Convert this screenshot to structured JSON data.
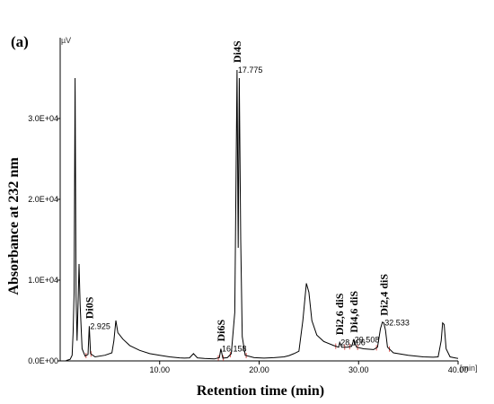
{
  "chart_data": {
    "type": "line",
    "panel_label": "(a)",
    "y_unit": "µV",
    "ylabel": "Absorbance at 232 nm",
    "xlabel": "Retention time (min)",
    "x_unit": "[min]",
    "xlim": [
      0,
      40
    ],
    "ylim": [
      0,
      40000
    ],
    "x_ticks": [
      {
        "value": 10,
        "label": "10.00"
      },
      {
        "value": 20,
        "label": "20.00"
      },
      {
        "value": 30,
        "label": "30.00"
      },
      {
        "value": 40,
        "label": "40.00"
      }
    ],
    "y_ticks": [
      {
        "value": 0,
        "label": "0.0E+00"
      },
      {
        "value": 10000,
        "label": "1.0E+04"
      },
      {
        "value": 20000,
        "label": "2.0E+04"
      },
      {
        "value": 30000,
        "label": "3.0E+04"
      }
    ],
    "series": [
      {
        "color": "#000000",
        "points": [
          [
            0.6,
            50
          ],
          [
            1.0,
            200
          ],
          [
            1.2,
            700
          ],
          [
            1.3,
            3500
          ],
          [
            1.4,
            8500
          ],
          [
            1.5,
            35000
          ],
          [
            1.6,
            8000
          ],
          [
            1.7,
            2500
          ],
          [
            1.8,
            7000
          ],
          [
            1.9,
            12000
          ],
          [
            2.0,
            7000
          ],
          [
            2.2,
            1500
          ],
          [
            2.5,
            600
          ],
          [
            2.8,
            800
          ],
          [
            2.925,
            4300
          ],
          [
            3.05,
            900
          ],
          [
            3.5,
            500
          ],
          [
            4.5,
            700
          ],
          [
            5.2,
            1000
          ],
          [
            5.4,
            2500
          ],
          [
            5.6,
            5000
          ],
          [
            5.8,
            3500
          ],
          [
            6.3,
            2700
          ],
          [
            7.0,
            1900
          ],
          [
            8.0,
            1300
          ],
          [
            9.0,
            900
          ],
          [
            10.0,
            700
          ],
          [
            11.0,
            500
          ],
          [
            12.0,
            380
          ],
          [
            12.5,
            350
          ],
          [
            13.0,
            380
          ],
          [
            13.4,
            900
          ],
          [
            13.8,
            380
          ],
          [
            14.5,
            300
          ],
          [
            15.5,
            250
          ],
          [
            16.0,
            400
          ],
          [
            16.158,
            1500
          ],
          [
            16.35,
            350
          ],
          [
            16.8,
            400
          ],
          [
            17.2,
            900
          ],
          [
            17.55,
            6000
          ],
          [
            17.775,
            36000
          ],
          [
            17.9,
            14000
          ],
          [
            18.0,
            35000
          ],
          [
            18.15,
            15000
          ],
          [
            18.3,
            3000
          ],
          [
            18.6,
            700
          ],
          [
            19.5,
            400
          ],
          [
            20.5,
            350
          ],
          [
            21.5,
            400
          ],
          [
            22.5,
            500
          ],
          [
            23.0,
            650
          ],
          [
            23.5,
            900
          ],
          [
            24.0,
            1200
          ],
          [
            24.4,
            5000
          ],
          [
            24.75,
            9600
          ],
          [
            25.0,
            8500
          ],
          [
            25.3,
            5000
          ],
          [
            25.8,
            3200
          ],
          [
            26.5,
            2400
          ],
          [
            27.5,
            1900
          ],
          [
            28.0,
            1700
          ],
          [
            28.1,
            2300
          ],
          [
            28.3,
            1700
          ],
          [
            28.8,
            1700
          ],
          [
            29.3,
            1800
          ],
          [
            29.508,
            2600
          ],
          [
            29.8,
            1700
          ],
          [
            30.5,
            1500
          ],
          [
            31.5,
            1400
          ],
          [
            31.9,
            1700
          ],
          [
            32.2,
            4000
          ],
          [
            32.4,
            4800
          ],
          [
            32.533,
            4700
          ],
          [
            32.7,
            3800
          ],
          [
            32.9,
            1700
          ],
          [
            33.5,
            1000
          ],
          [
            35.0,
            700
          ],
          [
            36.5,
            500
          ],
          [
            37.5,
            450
          ],
          [
            38.0,
            500
          ],
          [
            38.3,
            2500
          ],
          [
            38.45,
            4700
          ],
          [
            38.6,
            4500
          ],
          [
            38.8,
            1500
          ],
          [
            39.2,
            500
          ],
          [
            40.0,
            300
          ]
        ]
      }
    ],
    "retention_labels": [
      {
        "x": 2.925,
        "y": 4300,
        "text": "2.925"
      },
      {
        "x": 16.158,
        "y": 1500,
        "text": "16.158"
      },
      {
        "x": 17.775,
        "y": 36000,
        "text": "17.775"
      },
      {
        "x": 28.1,
        "y": 2300,
        "text": "28.106"
      },
      {
        "x": 29.508,
        "y": 2600,
        "text": "29.508"
      },
      {
        "x": 32.533,
        "y": 4700,
        "text": "32.533"
      }
    ],
    "peak_labels": [
      {
        "x": 2.925,
        "y": 4300,
        "text": "Di0S"
      },
      {
        "x": 16.158,
        "y": 1500,
        "text": "Di6S"
      },
      {
        "x": 17.775,
        "y": 36000,
        "text": "Di4S"
      },
      {
        "x": 28.1,
        "y": 2300,
        "text": "Di2,6 diS"
      },
      {
        "x": 29.508,
        "y": 2600,
        "text": "Di4,6 diS"
      },
      {
        "x": 32.533,
        "y": 4700,
        "text": "Di2,4 diS"
      }
    ],
    "integration_marks": [
      2.6,
      3.1,
      15.9,
      16.4,
      17.1,
      18.7,
      27.7,
      28.6,
      29.1,
      29.9,
      31.8,
      33.1
    ]
  }
}
